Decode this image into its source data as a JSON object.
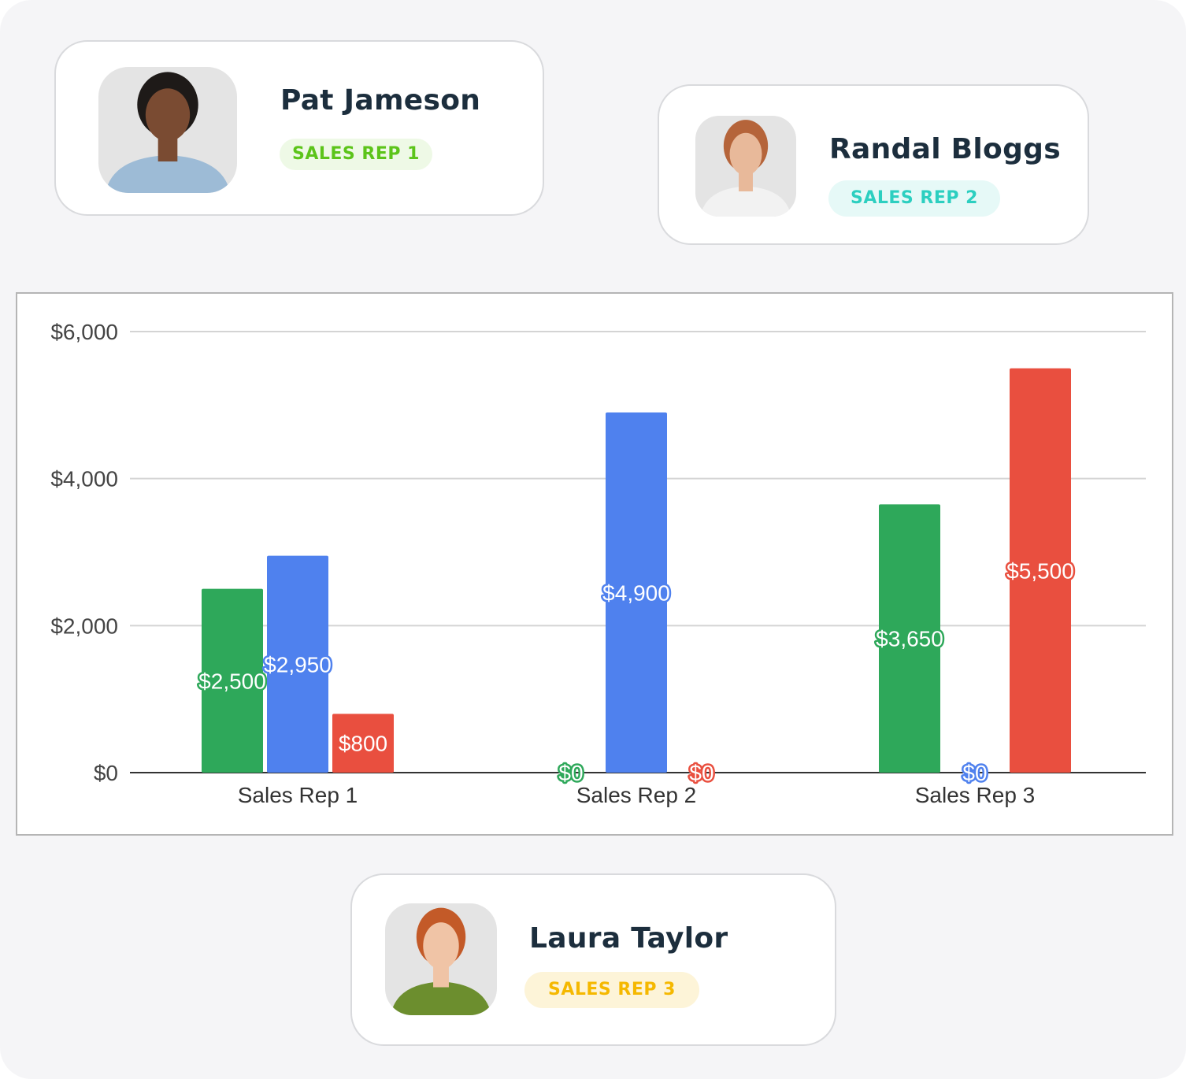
{
  "cards": [
    {
      "name": "Pat Jameson",
      "badge": "SALES REP 1",
      "badge_color": "#5cc41a",
      "badge_bg": "#eef9e6",
      "hair": "#1e1a18",
      "skin": "#7a4b32",
      "shirt": "#9dbbd6"
    },
    {
      "name": "Randal Bloggs",
      "badge": "SALES REP 2",
      "badge_color": "#2ccfc0",
      "badge_bg": "#e6f9f7",
      "hair": "#b5643a",
      "skin": "#e8b99a",
      "shirt": "#f2f2f2"
    },
    {
      "name": "Laura Taylor",
      "badge": "SALES REP 3",
      "badge_color": "#f5b800",
      "badge_bg": "#fdf4d8",
      "hair": "#c35a28",
      "skin": "#f0c4a6",
      "shirt": "#6c8e2e"
    }
  ],
  "chart_data": {
    "type": "bar",
    "categories": [
      "Sales Rep 1",
      "Sales Rep 2",
      "Sales Rep 3"
    ],
    "series": [
      {
        "color": "#2ea85a",
        "values": [
          2500,
          0,
          3650
        ],
        "labels": [
          "$2,500",
          "$0",
          "$3,650"
        ]
      },
      {
        "color": "#4f81ee",
        "values": [
          2950,
          4900,
          0
        ],
        "labels": [
          "$2,950",
          "$4,900",
          "$0"
        ]
      },
      {
        "color": "#e94f3f",
        "values": [
          800,
          0,
          5500
        ],
        "labels": [
          "$800",
          "$0",
          "$5,500"
        ]
      }
    ],
    "ylim": [
      0,
      6000
    ],
    "yticks": [
      0,
      2000,
      4000,
      6000
    ],
    "ytick_labels": [
      "$0",
      "$2,000",
      "$4,000",
      "$6,000"
    ],
    "grid": true,
    "title": "",
    "xlabel": "",
    "ylabel": ""
  }
}
